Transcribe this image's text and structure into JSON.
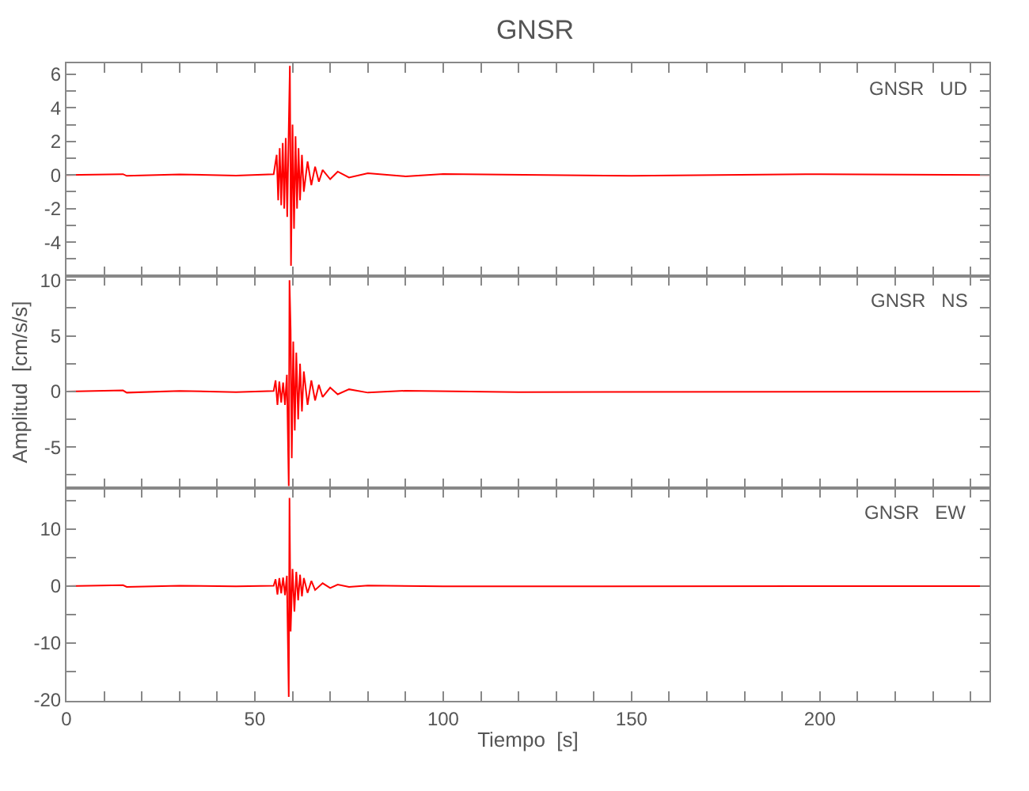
{
  "chart_data": [
    {
      "type": "line",
      "title": "GNSR",
      "annotations": [
        "GNSR   UD"
      ],
      "tick_labels": "y",
      "line_style": "solid",
      "xlim": [
        0,
        245
      ],
      "xticks": [
        0,
        {
          "value": 10,
          "label": null
        },
        {
          "value": 20,
          "label": null
        },
        {
          "value": 30,
          "label": null
        },
        {
          "value": 40,
          "label": null
        },
        50,
        {
          "value": 60,
          "label": null
        },
        {
          "value": 70,
          "label": null
        },
        {
          "value": 80,
          "label": null
        },
        {
          "value": 90,
          "label": null
        },
        100,
        {
          "value": 110,
          "label": null
        },
        {
          "value": 120,
          "label": null
        },
        {
          "value": 130,
          "label": null
        },
        {
          "value": 140,
          "label": null
        },
        150,
        {
          "value": 160,
          "label": null
        },
        {
          "value": 170,
          "label": null
        },
        {
          "value": 180,
          "label": null
        },
        {
          "value": 190,
          "label": null
        },
        200,
        {
          "value": 210,
          "label": null
        },
        {
          "value": 220,
          "label": null
        },
        {
          "value": 230,
          "label": null
        },
        {
          "value": 240,
          "label": null
        }
      ],
      "ylim": [
        -6,
        6.65
      ],
      "yticks": [
        {
          "value": -5,
          "label": null
        },
        -4,
        {
          "value": -3,
          "label": null
        },
        -2,
        {
          "value": -1,
          "label": null
        },
        0,
        {
          "value": 1,
          "label": null
        },
        2,
        {
          "value": 3,
          "label": null
        },
        4,
        {
          "value": 5,
          "label": null
        },
        6
      ],
      "series": [
        {
          "color": "#ff0000",
          "x": [
            0,
            15,
            16,
            30,
            45,
            55,
            55.8,
            56.2,
            56.6,
            57,
            57.4,
            57.8,
            58.2,
            58.6,
            59,
            59.3,
            59.6,
            60,
            60.4,
            60.8,
            61.2,
            61.6,
            62,
            62.5,
            63,
            64,
            65,
            66,
            67,
            68,
            70,
            72,
            75,
            80,
            90,
            100,
            150,
            200,
            245
          ],
          "values": [
            0,
            0.05,
            -0.05,
            0.03,
            -0.03,
            0.05,
            1.2,
            -1.5,
            1.6,
            -1.8,
            1.9,
            -2.0,
            2.2,
            -2.5,
            2.8,
            6.5,
            -5.4,
            3.0,
            -3.2,
            2.3,
            -2.0,
            1.6,
            -1.5,
            1.2,
            -1.0,
            0.8,
            -0.6,
            0.5,
            -0.4,
            0.3,
            -0.25,
            0.2,
            -0.15,
            0.1,
            -0.08,
            0.06,
            -0.05,
            0.05,
            0
          ]
        }
      ]
    },
    {
      "type": "line",
      "ylabel": "Amplitud  [cm/s/s]",
      "annotations": [
        "GNSR   NS"
      ],
      "tick_labels": "y",
      "line_style": "solid",
      "xlim": [
        0,
        245
      ],
      "xticks": [
        0,
        {
          "value": 10,
          "label": null
        },
        {
          "value": 20,
          "label": null
        },
        {
          "value": 30,
          "label": null
        },
        {
          "value": 40,
          "label": null
        },
        50,
        {
          "value": 60,
          "label": null
        },
        {
          "value": 70,
          "label": null
        },
        {
          "value": 80,
          "label": null
        },
        {
          "value": 90,
          "label": null
        },
        100,
        {
          "value": 110,
          "label": null
        },
        {
          "value": 120,
          "label": null
        },
        {
          "value": 130,
          "label": null
        },
        {
          "value": 140,
          "label": null
        },
        150,
        {
          "value": 160,
          "label": null
        },
        {
          "value": 170,
          "label": null
        },
        {
          "value": 180,
          "label": null
        },
        {
          "value": 190,
          "label": null
        },
        200,
        {
          "value": 210,
          "label": null
        },
        {
          "value": 220,
          "label": null
        },
        {
          "value": 230,
          "label": null
        },
        {
          "value": 240,
          "label": null
        }
      ],
      "ylim": [
        -8.7,
        10.4
      ],
      "yticks": [
        -5,
        {
          "value": -2.5,
          "label": null
        },
        0,
        {
          "value": 2.5,
          "label": null
        },
        5,
        {
          "value": 7.5,
          "label": null
        },
        10,
        {
          "value": -7.5,
          "label": null
        }
      ],
      "series": [
        {
          "color": "#ff0000",
          "x": [
            0,
            15,
            16,
            30,
            45,
            55,
            55.5,
            56,
            56.5,
            57,
            57.5,
            58,
            58.5,
            59,
            59.2,
            59.5,
            59.8,
            60.2,
            60.6,
            61,
            61.5,
            62,
            62.5,
            63,
            64,
            65,
            66,
            67,
            68,
            70,
            72,
            75,
            80,
            90,
            120,
            245
          ],
          "values": [
            0,
            0.1,
            -0.1,
            0.05,
            -0.05,
            0.05,
            1.0,
            -1.2,
            0.9,
            -1.0,
            0.8,
            -1.2,
            1.5,
            -8.5,
            10,
            5.5,
            -6.0,
            4.5,
            -3.5,
            3.5,
            -2.5,
            2.5,
            -1.8,
            1.8,
            -1.2,
            1.0,
            -0.8,
            0.6,
            -0.5,
            0.35,
            -0.25,
            0.2,
            -0.1,
            0.07,
            -0.05,
            0
          ]
        }
      ]
    },
    {
      "type": "line",
      "xlabel": "Tiempo  [s]",
      "annotations": [
        "GNSR   EW"
      ],
      "line_style": "solid",
      "xlim": [
        0,
        245
      ],
      "xticks": [
        0,
        {
          "value": 10,
          "label": null
        },
        {
          "value": 20,
          "label": null
        },
        {
          "value": 30,
          "label": null
        },
        {
          "value": 40,
          "label": null
        },
        50,
        {
          "value": 60,
          "label": null
        },
        {
          "value": 70,
          "label": null
        },
        {
          "value": 80,
          "label": null
        },
        {
          "value": 90,
          "label": null
        },
        100,
        {
          "value": 110,
          "label": null
        },
        {
          "value": 120,
          "label": null
        },
        {
          "value": 130,
          "label": null
        },
        {
          "value": 140,
          "label": null
        },
        150,
        {
          "value": 160,
          "label": null
        },
        {
          "value": 170,
          "label": null
        },
        {
          "value": 180,
          "label": null
        },
        {
          "value": 190,
          "label": null
        },
        200,
        {
          "value": 210,
          "label": null
        },
        {
          "value": 220,
          "label": null
        },
        {
          "value": 230,
          "label": null
        },
        {
          "value": 240,
          "label": null
        }
      ],
      "ylim": [
        -20.2,
        17.2
      ],
      "yticks": [
        -20,
        {
          "value": -15,
          "label": null
        },
        -10,
        {
          "value": -5,
          "label": null
        },
        0,
        {
          "value": 5,
          "label": null
        },
        10,
        {
          "value": 15,
          "label": null
        }
      ],
      "series": [
        {
          "color": "#ff0000",
          "x": [
            0,
            15,
            16,
            30,
            45,
            55,
            55.5,
            56,
            56.5,
            57,
            57.5,
            58,
            58.5,
            59,
            59.2,
            59.5,
            60,
            60.5,
            61,
            61.5,
            62,
            62.5,
            63,
            64,
            65,
            66,
            68,
            70,
            72,
            75,
            80,
            100,
            245
          ],
          "values": [
            0,
            0.15,
            -0.15,
            0.05,
            -0.05,
            0.05,
            1.2,
            -1.5,
            1.4,
            -1.3,
            1.5,
            -1.6,
            1.8,
            -19.5,
            15.5,
            -8,
            3,
            -4.5,
            2.5,
            -2.5,
            2,
            -1.8,
            1.4,
            -1.2,
            0.9,
            -0.7,
            0.5,
            -0.35,
            0.25,
            -0.15,
            0.1,
            -0.05,
            0
          ]
        }
      ]
    }
  ]
}
